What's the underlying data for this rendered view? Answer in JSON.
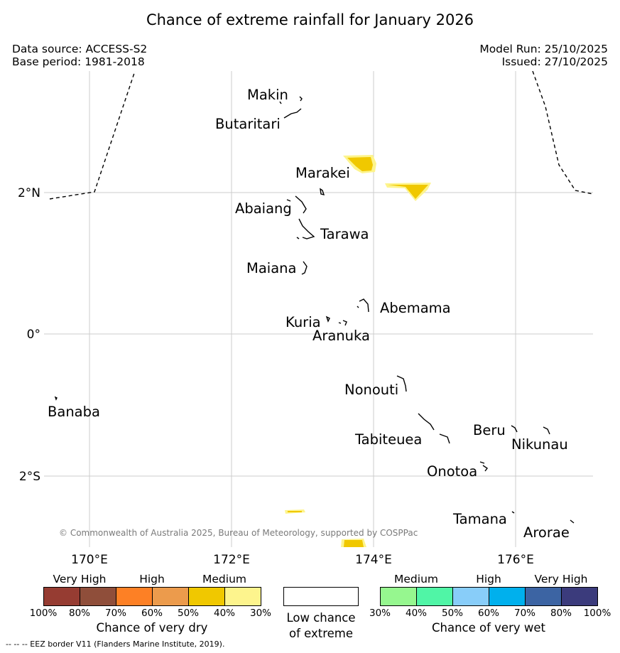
{
  "title": "Chance of extreme rainfall for January 2026",
  "meta": {
    "data_source": "Data source: ACCESS-S2",
    "base_period": "Base period: 1981-2018",
    "model_run": "Model Run: 25/10/2025",
    "issued": "Issued: 27/10/2025"
  },
  "map": {
    "lon_ticks": [
      "170°E",
      "172°E",
      "174°E",
      "176°E"
    ],
    "lat_ticks": [
      "2°N",
      "0°",
      "2°S"
    ],
    "copyright": "© Commonwealth of Australia 2025, Bureau of Meteorology, supported by COSPPac",
    "places": {
      "makin": "Makin",
      "butaritari": "Butaritari",
      "marakei": "Marakei",
      "abaiang": "Abaiang",
      "tarawa": "Tarawa",
      "maiana": "Maiana",
      "abemama": "Abemama",
      "kuria": "Kuria",
      "aranuka": "Aranuka",
      "nonouti": "Nonouti",
      "banaba": "Banaba",
      "beru": "Beru",
      "tabiteuea": "Tabiteuea",
      "nikunau": "Nikunau",
      "onotoa": "Onotoa",
      "tamana": "Tamana",
      "arorae": "Arorae"
    },
    "colors": {
      "medium_dry": "#f0c800",
      "low_dry": "#fdf48d"
    }
  },
  "legend": {
    "dry": {
      "headers": [
        "Very High",
        "High",
        "Medium"
      ],
      "colors": [
        "#963c32",
        "#8f4e3a",
        "#fd8025",
        "#ec9b4c",
        "#f0c800",
        "#fdf48d"
      ],
      "ticks": [
        "100%",
        "80%",
        "70%",
        "60%",
        "50%",
        "40%",
        "30%"
      ],
      "title": "Chance of very dry"
    },
    "low": {
      "line1": "Low chance",
      "line2": "of extreme"
    },
    "wet": {
      "headers": [
        "Medium",
        "High",
        "Very High"
      ],
      "colors": [
        "#96f78f",
        "#50f5a6",
        "#88cdf9",
        "#00b0ed",
        "#3c64a3",
        "#3b3b7c"
      ],
      "ticks": [
        "30%",
        "40%",
        "50%",
        "60%",
        "70%",
        "80%",
        "100%"
      ],
      "title": "Chance of very wet"
    }
  },
  "footer": "--  --  -- EEZ border V11 (Flanders Marine Institute, 2019)."
}
